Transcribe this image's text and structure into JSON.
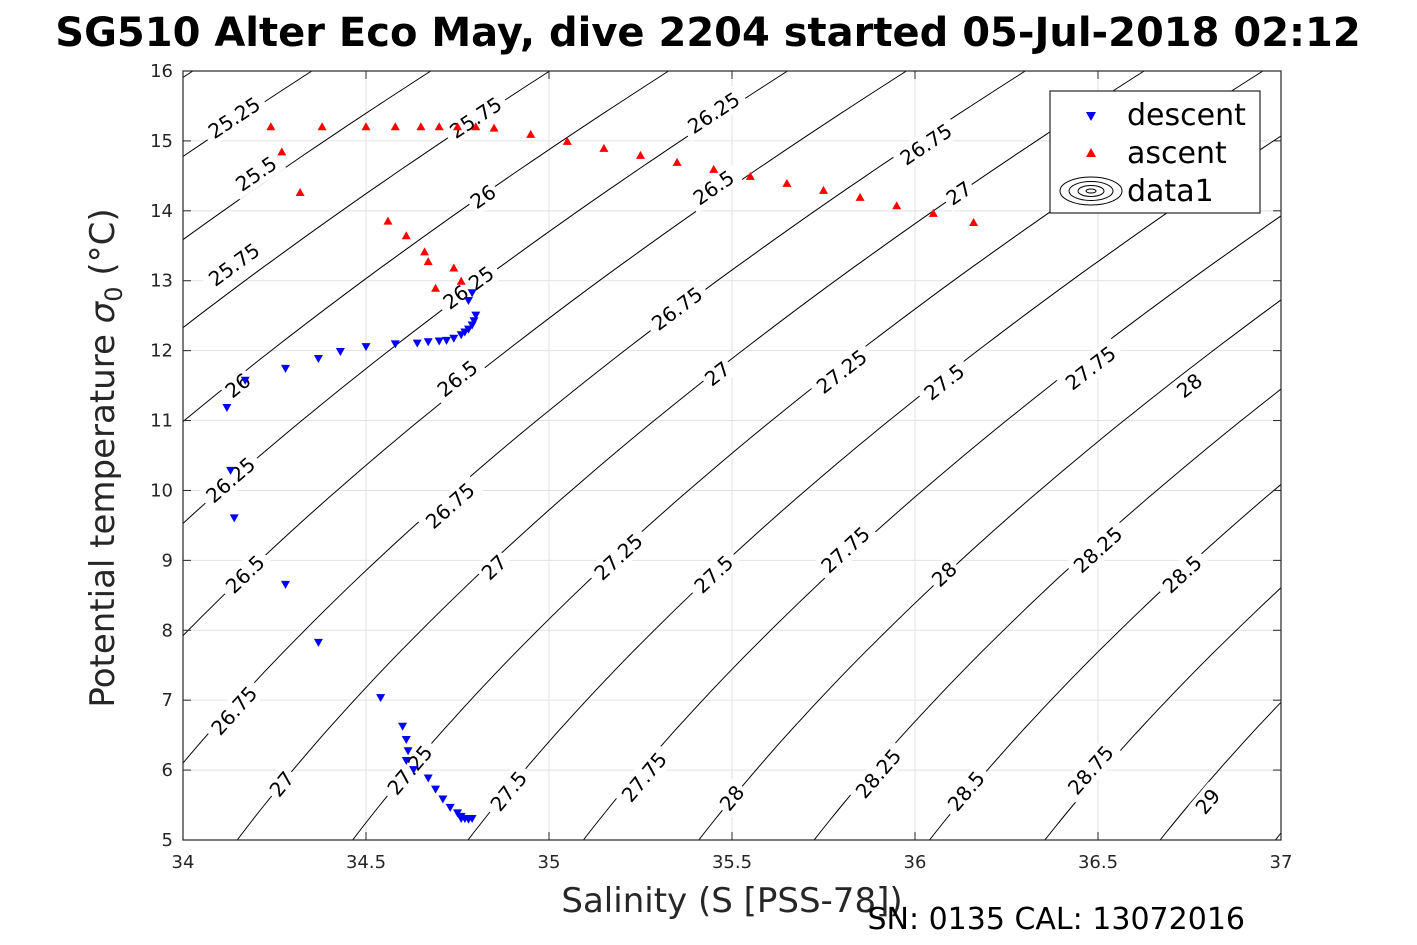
{
  "chart_data": {
    "type": "scatter",
    "title": "SG510 Alter Eco May, dive 2204 started 05-Jul-2018 02:12",
    "xlabel": "Salinity (S [PSS-78])",
    "ylabel_main": "Potential temperature ",
    "ylabel_sym": "σ",
    "ylabel_sub": "0",
    "ylabel_unit": " (°C)",
    "footer": "SN: 0135  CAL: 13072016",
    "xlim": [
      34,
      37
    ],
    "ylim": [
      5,
      16
    ],
    "xticks": [
      "34",
      "34.5",
      "35",
      "35.5",
      "36",
      "36.5",
      "37"
    ],
    "yticks": [
      "5",
      "6",
      "7",
      "8",
      "9",
      "10",
      "11",
      "12",
      "13",
      "14",
      "15",
      "16"
    ],
    "grid": true,
    "legend_position": "top-right",
    "legend": [
      "descent",
      "ascent",
      "data1"
    ],
    "colors": {
      "descent": "#0000ff",
      "ascent": "#ff0000",
      "contour": "#000000"
    },
    "series": [
      {
        "name": "descent",
        "marker": "triangle-down",
        "points": [
          [
            34.78,
            12.71
          ],
          [
            34.79,
            12.82
          ],
          [
            34.8,
            12.5
          ],
          [
            34.795,
            12.42
          ],
          [
            34.79,
            12.36
          ],
          [
            34.78,
            12.3
          ],
          [
            34.77,
            12.26
          ],
          [
            34.76,
            12.22
          ],
          [
            34.74,
            12.17
          ],
          [
            34.72,
            12.14
          ],
          [
            34.7,
            12.13
          ],
          [
            34.67,
            12.12
          ],
          [
            34.64,
            12.1
          ],
          [
            34.58,
            12.09
          ],
          [
            34.5,
            12.05
          ],
          [
            34.43,
            11.98
          ],
          [
            34.37,
            11.88
          ],
          [
            34.28,
            11.74
          ],
          [
            34.17,
            11.57
          ],
          [
            34.12,
            11.18
          ],
          [
            34.13,
            10.28
          ],
          [
            34.14,
            9.6
          ],
          [
            34.28,
            8.65
          ],
          [
            34.37,
            7.82
          ],
          [
            34.54,
            7.03
          ],
          [
            34.6,
            6.62
          ],
          [
            34.61,
            6.43
          ],
          [
            34.615,
            6.27
          ],
          [
            34.61,
            6.13
          ],
          [
            34.63,
            6.0
          ],
          [
            34.67,
            5.88
          ],
          [
            34.69,
            5.72
          ],
          [
            34.71,
            5.58
          ],
          [
            34.73,
            5.46
          ],
          [
            34.75,
            5.38
          ],
          [
            34.76,
            5.33
          ],
          [
            34.77,
            5.3
          ],
          [
            34.78,
            5.29
          ],
          [
            34.76,
            5.3
          ],
          [
            34.79,
            5.3
          ]
        ]
      },
      {
        "name": "ascent",
        "marker": "triangle-up",
        "points": [
          [
            34.24,
            15.21
          ],
          [
            34.27,
            14.85
          ],
          [
            34.32,
            14.27
          ],
          [
            34.56,
            13.86
          ],
          [
            34.61,
            13.65
          ],
          [
            34.66,
            13.42
          ],
          [
            34.67,
            13.28
          ],
          [
            34.74,
            13.19
          ],
          [
            34.69,
            12.9
          ],
          [
            34.76,
            13.0
          ],
          [
            34.38,
            15.21
          ],
          [
            34.5,
            15.21
          ],
          [
            34.58,
            15.21
          ],
          [
            34.65,
            15.21
          ],
          [
            34.7,
            15.21
          ],
          [
            34.75,
            15.21
          ],
          [
            34.8,
            15.21
          ],
          [
            34.85,
            15.19
          ],
          [
            34.95,
            15.1
          ],
          [
            35.05,
            15.0
          ],
          [
            35.15,
            14.9
          ],
          [
            35.25,
            14.8
          ],
          [
            35.35,
            14.7
          ],
          [
            35.45,
            14.6
          ],
          [
            35.55,
            14.5
          ],
          [
            35.65,
            14.4
          ],
          [
            35.75,
            14.3
          ],
          [
            35.85,
            14.2
          ],
          [
            35.95,
            14.08
          ],
          [
            36.05,
            13.97
          ],
          [
            36.16,
            13.84
          ]
        ]
      }
    ],
    "contour_levels": [
      {
        "label": "25.25",
        "labels_at": [
          [
            34.14,
            15.33
          ]
        ]
      },
      {
        "label": "25.5",
        "labels_at": [
          [
            34.2,
            14.53
          ]
        ]
      },
      {
        "label": "25.75",
        "labels_at": [
          [
            34.14,
            13.23
          ],
          [
            34.8,
            15.33
          ]
        ]
      },
      {
        "label": "26",
        "labels_at": [
          [
            34.15,
            11.5
          ],
          [
            34.82,
            14.2
          ]
        ]
      },
      {
        "label": "26.25",
        "labels_at": [
          [
            34.13,
            10.15
          ],
          [
            34.78,
            12.9
          ],
          [
            35.45,
            15.4
          ]
        ]
      },
      {
        "label": "26.5",
        "labels_at": [
          [
            34.17,
            8.8
          ],
          [
            34.75,
            11.6
          ],
          [
            35.45,
            14.33
          ]
        ]
      },
      {
        "label": "26.75",
        "labels_at": [
          [
            34.14,
            6.85
          ],
          [
            34.73,
            9.78
          ],
          [
            35.35,
            12.6
          ],
          [
            36.03,
            14.95
          ]
        ]
      },
      {
        "label": "27",
        "labels_at": [
          [
            34.27,
            5.8
          ],
          [
            34.85,
            8.9
          ],
          [
            35.46,
            11.67
          ],
          [
            36.12,
            14.25
          ]
        ]
      },
      {
        "label": "27.25",
        "labels_at": [
          [
            34.62,
            6.0
          ],
          [
            35.19,
            9.05
          ],
          [
            35.8,
            11.7
          ]
        ]
      },
      {
        "label": "27.5",
        "labels_at": [
          [
            34.89,
            5.7
          ],
          [
            35.45,
            8.8
          ],
          [
            36.08,
            11.55
          ]
        ]
      },
      {
        "label": "27.75",
        "labels_at": [
          [
            35.26,
            5.9
          ],
          [
            35.81,
            9.15
          ],
          [
            36.48,
            11.75
          ]
        ]
      },
      {
        "label": "28",
        "labels_at": [
          [
            35.5,
            5.6
          ],
          [
            36.08,
            8.8
          ],
          [
            36.75,
            11.5
          ]
        ]
      },
      {
        "label": "28.25",
        "labels_at": [
          [
            35.9,
            5.95
          ],
          [
            36.5,
            9.15
          ]
        ]
      },
      {
        "label": "28.5",
        "labels_at": [
          [
            36.14,
            5.7
          ],
          [
            36.73,
            8.8
          ]
        ]
      },
      {
        "label": "28.75",
        "labels_at": [
          [
            36.48,
            6.0
          ]
        ]
      },
      {
        "label": "29",
        "labels_at": [
          [
            36.8,
            5.55
          ]
        ]
      }
    ]
  }
}
